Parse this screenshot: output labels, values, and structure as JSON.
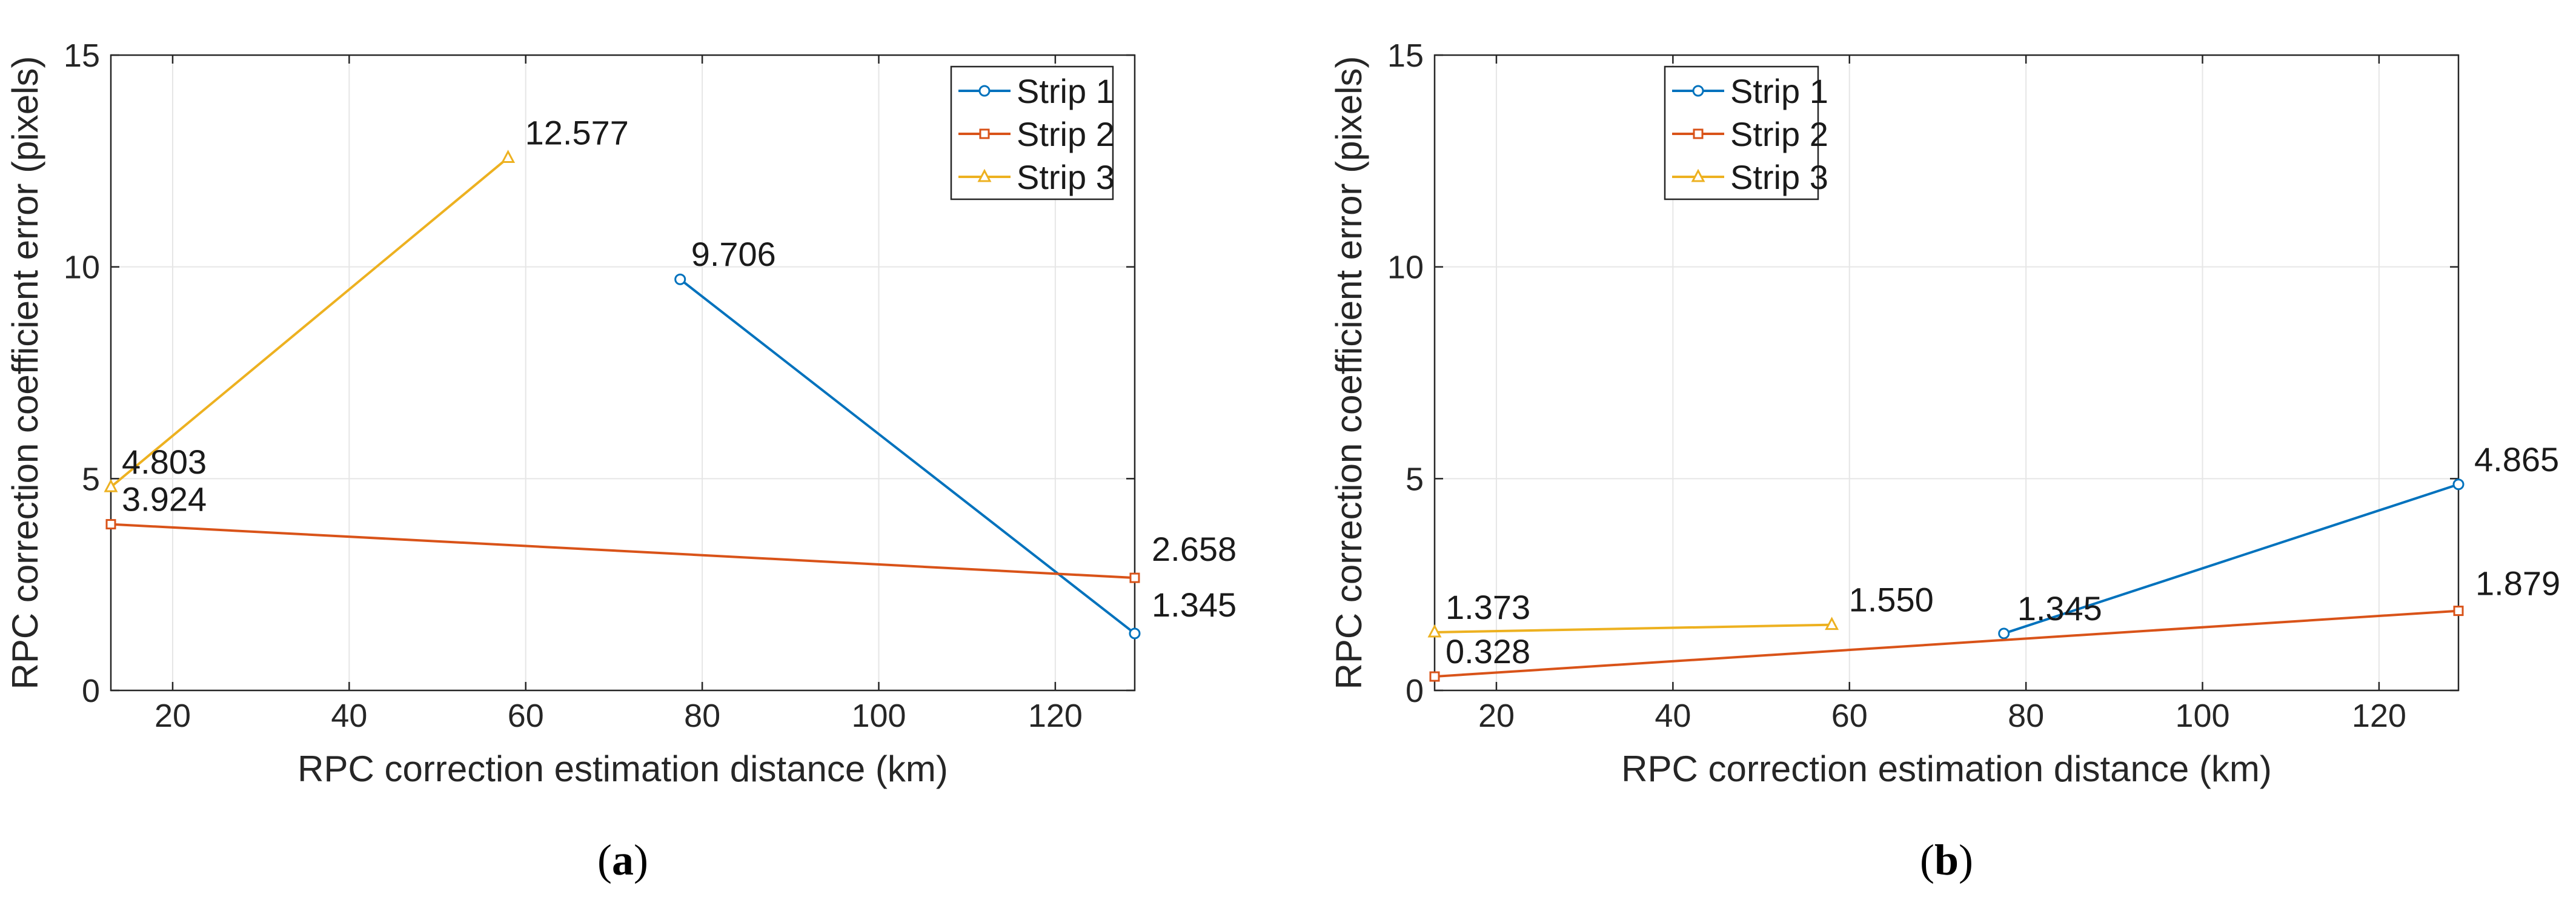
{
  "chart_data": [
    {
      "type": "line",
      "panel_label": "(a)",
      "panel_letter": "a",
      "xlabel": "RPC correction estimation distance (km)",
      "ylabel": "RPC correction coefficient error (pixels)",
      "xlim": [
        13,
        129
      ],
      "ylim": [
        0,
        15
      ],
      "xticks": [
        20,
        40,
        60,
        80,
        100,
        120
      ],
      "yticks": [
        0,
        5,
        10,
        15
      ],
      "grid": true,
      "legend_position": "top-right",
      "series": [
        {
          "name": "Strip 1",
          "color": "#0072BD",
          "marker": "circle",
          "x": [
            77.5,
            129
          ],
          "y": [
            9.706,
            1.345
          ],
          "labels": [
            "9.706",
            "1.345"
          ]
        },
        {
          "name": "Strip 2",
          "color": "#D95319",
          "marker": "square",
          "x": [
            13,
            129
          ],
          "y": [
            3.924,
            2.658
          ],
          "labels": [
            "3.924",
            "2.658"
          ]
        },
        {
          "name": "Strip 3",
          "color": "#EDB120",
          "marker": "triangle",
          "x": [
            13,
            58
          ],
          "y": [
            4.803,
            12.577
          ],
          "labels": [
            "4.803",
            "12.577"
          ]
        }
      ]
    },
    {
      "type": "line",
      "panel_label": "(b)",
      "panel_letter": "b",
      "xlabel": "RPC correction estimation distance (km)",
      "ylabel": "RPC correction coefficient error (pixels)",
      "xlim": [
        13,
        129
      ],
      "ylim": [
        0,
        15
      ],
      "xticks": [
        20,
        40,
        60,
        80,
        100,
        120
      ],
      "yticks": [
        0,
        5,
        10,
        15
      ],
      "grid": true,
      "legend_position": "top-left",
      "series": [
        {
          "name": "Strip 1",
          "color": "#0072BD",
          "marker": "circle",
          "x": [
            77.5,
            129
          ],
          "y": [
            1.345,
            4.865
          ],
          "labels": [
            "1.345",
            "4.865"
          ]
        },
        {
          "name": "Strip 2",
          "color": "#D95319",
          "marker": "square",
          "x": [
            13,
            129
          ],
          "y": [
            0.328,
            1.879
          ],
          "labels": [
            "0.328",
            "1.879"
          ]
        },
        {
          "name": "Strip 3",
          "color": "#EDB120",
          "marker": "triangle",
          "x": [
            13,
            58
          ],
          "y": [
            1.373,
            1.55
          ],
          "labels": [
            "1.373",
            "1.550"
          ]
        }
      ]
    }
  ]
}
